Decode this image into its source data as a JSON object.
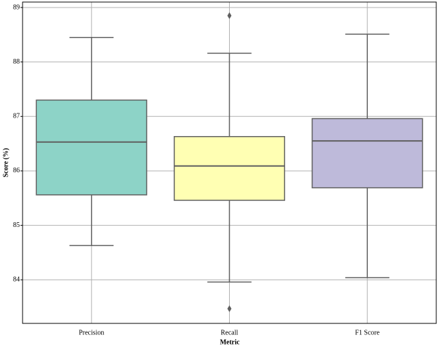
{
  "chart_data": {
    "type": "box",
    "x_label": "Metric",
    "y_label": "Score (%)",
    "categories": [
      "Precision",
      "Recall",
      "F1 Score"
    ],
    "boxes": [
      {
        "min": 84.63,
        "q1": 85.56,
        "median": 86.53,
        "q3": 87.3,
        "max": 88.45,
        "outliers": []
      },
      {
        "min": 83.96,
        "q1": 85.46,
        "median": 86.09,
        "q3": 86.63,
        "max": 88.16,
        "outliers": [
          88.85,
          83.47
        ]
      },
      {
        "min": 84.04,
        "q1": 85.69,
        "median": 86.55,
        "q3": 86.96,
        "max": 88.51,
        "outliers": []
      }
    ],
    "colors": [
      "#8dd3c7",
      "#ffffb3",
      "#bebada"
    ],
    "ylim": [
      83.2,
      89.1
    ],
    "yticks": [
      84,
      85,
      86,
      87,
      88,
      89
    ],
    "grid": true
  }
}
